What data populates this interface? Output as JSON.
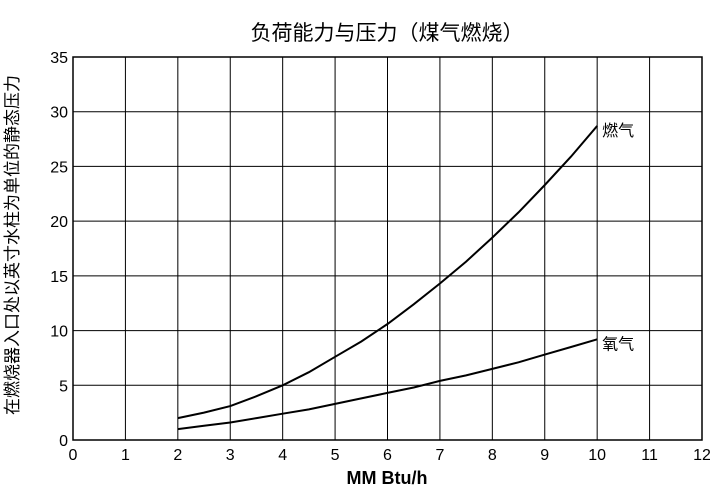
{
  "chart_data": {
    "type": "line",
    "title": "负荷能力与压力（煤气燃烧）",
    "xlabel": "MM Btu/h",
    "ylabel": "在燃烧器入口处以英寸水柱为单位的静态压力",
    "xlim": [
      0,
      12
    ],
    "ylim": [
      0,
      35
    ],
    "x_ticks": [
      0,
      1,
      2,
      3,
      4,
      5,
      6,
      7,
      8,
      9,
      10,
      11,
      12
    ],
    "y_ticks": [
      0,
      5,
      10,
      15,
      20,
      25,
      30,
      35
    ],
    "grid": true,
    "series": [
      {
        "name": "燃气",
        "x": [
          2,
          2.5,
          3,
          3.5,
          4,
          4.5,
          5,
          5.5,
          6,
          6.5,
          7,
          7.5,
          8,
          8.5,
          9,
          9.5,
          10
        ],
        "y": [
          2.0,
          2.5,
          3.1,
          4.0,
          5.0,
          6.2,
          7.6,
          9.0,
          10.6,
          12.4,
          14.3,
          16.3,
          18.5,
          20.8,
          23.3,
          25.9,
          28.7
        ]
      },
      {
        "name": "氧气",
        "x": [
          2,
          2.5,
          3,
          3.5,
          4,
          4.5,
          5,
          5.5,
          6,
          6.5,
          7,
          7.5,
          8,
          8.5,
          9,
          9.5,
          10
        ],
        "y": [
          1.0,
          1.3,
          1.6,
          2.0,
          2.4,
          2.8,
          3.3,
          3.8,
          4.3,
          4.8,
          5.4,
          5.9,
          6.5,
          7.1,
          7.8,
          8.5,
          9.2
        ]
      }
    ]
  }
}
